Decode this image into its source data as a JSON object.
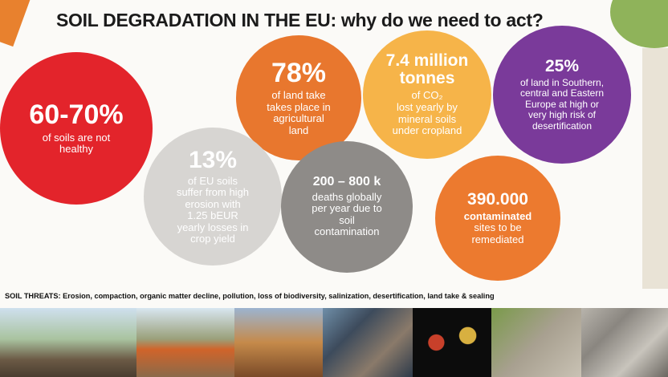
{
  "title": "SOIL DEGRADATION IN THE EU: why do we need to act?",
  "facts": [
    {
      "headline": [
        "60-70%"
      ],
      "body": [
        "of soils are not",
        "healthy"
      ]
    },
    {
      "headline": [
        "78%"
      ],
      "body": [
        "of land take",
        "takes place in",
        "agricultural",
        "land"
      ]
    },
    {
      "headline": [
        "7.4 million",
        "tonnes"
      ],
      "body": [
        "of CO₂",
        "lost yearly by",
        "mineral soils",
        "under cropland"
      ]
    },
    {
      "headline": [
        "25%"
      ],
      "body": [
        "of land in Southern,",
        "central and Eastern",
        "Europe at high or",
        "very high risk of",
        "desertification"
      ]
    },
    {
      "headline": [
        "13%"
      ],
      "body": [
        "of EU soils",
        "suffer from high",
        "erosion with",
        "1.25 bEUR",
        "yearly losses in",
        "crop yield"
      ]
    },
    {
      "headline": [
        "200 – 800 k"
      ],
      "body": [
        "deaths globally",
        "per year due to",
        "soil",
        "contamination"
      ]
    },
    {
      "headline": [
        "390.000"
      ],
      "body": [
        "contaminated",
        "sites to be",
        "remediated"
      ]
    }
  ],
  "threats": {
    "label": "SOIL THREATS:",
    "text": "Erosion, compaction, organic matter decline, pollution, loss of biodiversity, salinization, desertification, land take & sealing"
  }
}
